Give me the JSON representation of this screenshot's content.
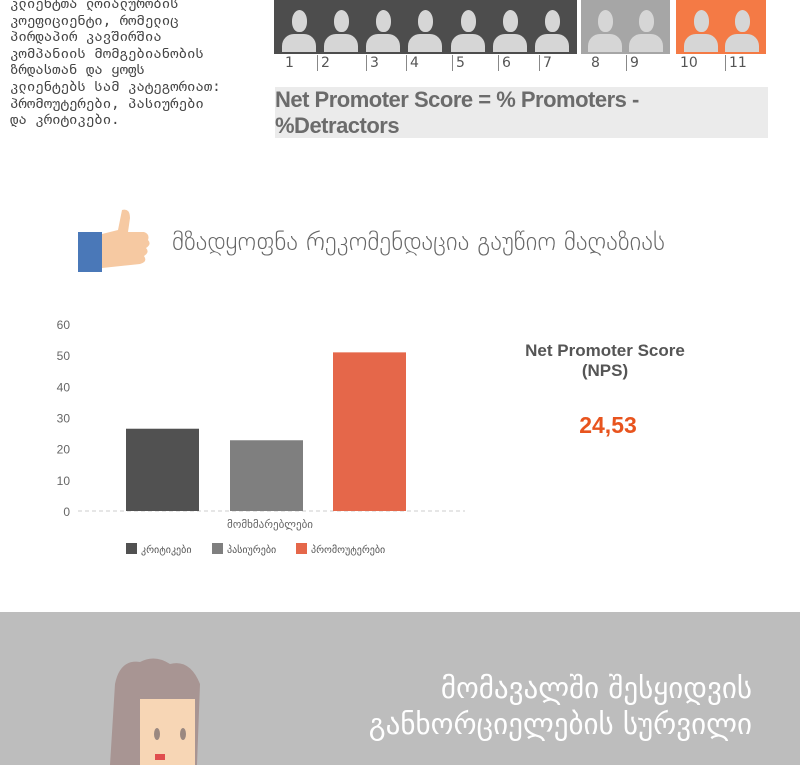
{
  "intro_text": "კლიენტთა ლოიალურობის\nკოეფიციენტი, რომელიც\nპირდაპირ კავშირშია\nკომპანიის მომგებიანობის\nზრდასთან და ყოფს\nკლიენტებს სამ კატეგორიათ:\nპრომოუტერები, პასიურები\nდა კრიტიკები.",
  "scale": {
    "groups": [
      {
        "count": 7,
        "color": "#4d4d4d"
      },
      {
        "count": 2,
        "color": "#a6a6a6"
      },
      {
        "count": 2,
        "color": "#f47a45"
      }
    ],
    "numbers": [
      "1",
      "2",
      "3",
      "4",
      "5",
      "6",
      "7",
      "8",
      "9",
      "10",
      "11"
    ]
  },
  "formula": "Net Promoter Score  =  % Promoters - %Detractors",
  "section_heading": "მზადყოფნა რეკომენდაცია გაუწიო მაღაზიას",
  "nps": {
    "title": "Net Promoter Score\n(NPS)",
    "title_line1": "Net Promoter Score",
    "title_line2": "(NPS)",
    "value": "24,53",
    "color": "#e8541e"
  },
  "chart_data": {
    "type": "bar",
    "categories": [
      "მომხმარებლები"
    ],
    "series": [
      {
        "name": "კრიტიკები",
        "values": [
          26.4
        ],
        "color": "#515151"
      },
      {
        "name": "პასიურები",
        "values": [
          22.7
        ],
        "color": "#7f7f7f"
      },
      {
        "name": "პრომოუტერები",
        "values": [
          50.9
        ],
        "color": "#e5674a"
      }
    ],
    "yticks": [
      "0",
      "10",
      "20",
      "30",
      "40",
      "50",
      "60"
    ],
    "ylim": [
      0,
      60
    ],
    "grid": false,
    "legend": "bottom"
  },
  "bottom_heading": "მომავალში შესყიდვის\nგანხორციელების სურვილი"
}
